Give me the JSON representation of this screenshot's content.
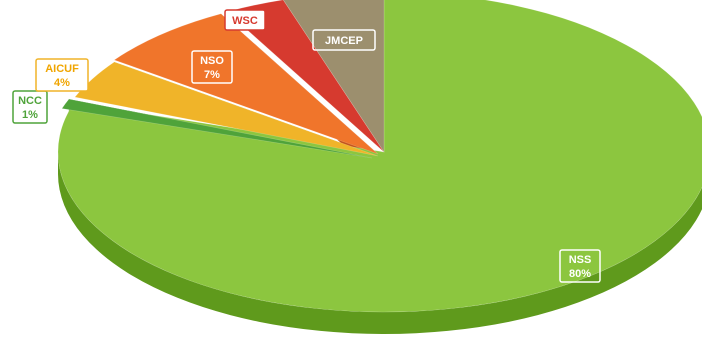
{
  "chart_data": {
    "type": "pie",
    "title": "",
    "slices": [
      {
        "label": "NSS",
        "value": 80,
        "value_label": "80%",
        "color": "#8cc63f",
        "side": "#5f9a1c",
        "label_color": "#ffffff",
        "border": "#ffffff"
      },
      {
        "label": "NCC",
        "value": 1,
        "value_label": "1%",
        "color": "#4fa33a",
        "side": "#2f7a22",
        "label_color": "#4fa33a",
        "border": "#4fa33a"
      },
      {
        "label": "AICUF",
        "value": 4,
        "value_label": "4%",
        "color": "#f0b429",
        "side": "#c68c12",
        "label_color": "#f0a500",
        "border": "#f0b429"
      },
      {
        "label": "NSO",
        "value": 7,
        "value_label": "7%",
        "color": "#f0752b",
        "side": "#c4541a",
        "label_color": "#ffffff",
        "border": "#ffffff"
      },
      {
        "label": "WSC",
        "value": 3,
        "value_label": "",
        "color": "#d63a2f",
        "side": "#a3261f",
        "label_color": "#d63a2f",
        "border": "#d63a2f"
      },
      {
        "label": "JMCEP",
        "value": 5,
        "value_label": "",
        "color": "#9c8f6e",
        "side": "#746849",
        "label_color": "#ffffff",
        "border": "#ffffff"
      }
    ]
  }
}
